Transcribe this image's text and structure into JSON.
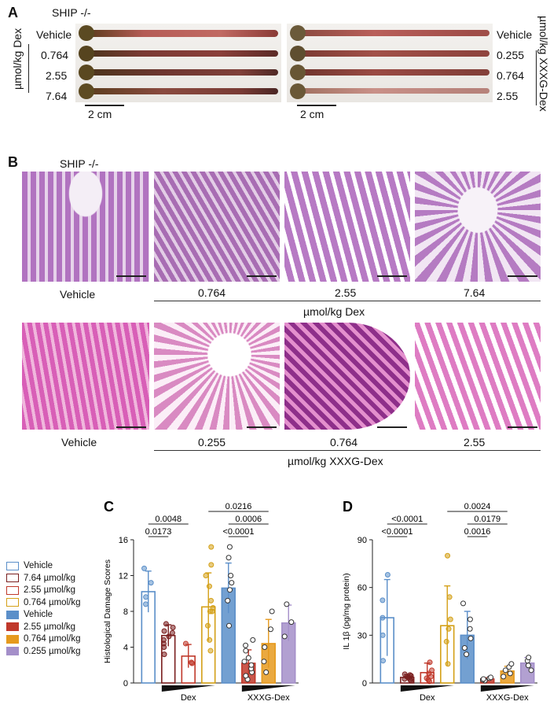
{
  "panel_a": {
    "letter": "A",
    "genotype": "SHIP -/-",
    "left_unit": "µmol/kg Dex",
    "left_rows": [
      "Vehicle",
      "0.764",
      "2.55",
      "7.64"
    ],
    "right_unit": "µmol/kg XXXG-Dex",
    "right_rows": [
      "Vehicle",
      "0.255",
      "0.764",
      "2.55"
    ],
    "scale_left": "2 cm",
    "scale_right": "2 cm"
  },
  "panel_b": {
    "letter": "B",
    "genotype": "SHIP -/-",
    "row1_labels": [
      "Vehicle",
      "0.764",
      "2.55",
      "7.64"
    ],
    "row1_unit": "µmol/kg Dex",
    "row2_labels": [
      "Vehicle",
      "0.255",
      "0.764",
      "2.55"
    ],
    "row2_unit": "µmol/kg XXXG-Dex"
  },
  "legend": {
    "items": [
      {
        "label": "Vehicle",
        "color": "#5b8fc9",
        "fill": false
      },
      {
        "label": "7.64 µmol/kg",
        "color": "#7a1f1f",
        "fill": false
      },
      {
        "label": "2.55 µmol/kg",
        "color": "#c0392b",
        "fill": false
      },
      {
        "label": "0.764 µmol/kg",
        "color": "#d4a017",
        "fill": false
      },
      {
        "label": "Vehicle",
        "color": "#5b8fc9",
        "fill": true
      },
      {
        "label": "2.55 µmol/kg",
        "color": "#c0392b",
        "fill": true
      },
      {
        "label": "0.764 µmol/kg",
        "color": "#e69a1e",
        "fill": true
      },
      {
        "label": "0.255 µmol/kg",
        "color": "#a48fc9",
        "fill": true
      }
    ]
  },
  "chart_data": [
    {
      "panel": "C",
      "type": "bar",
      "ylabel": "Histological Damage Scores",
      "ylim": [
        0,
        16
      ],
      "yticks": [
        0,
        4,
        8,
        12,
        16
      ],
      "group_labels": [
        "Dex",
        "XXXG-Dex"
      ],
      "bars": [
        {
          "name": "Vehicle",
          "mean": 10.2,
          "sd": 2.3,
          "color": "#5b8fc9",
          "fill": false,
          "points": [
            8.8,
            9.6,
            11.2,
            12.8
          ]
        },
        {
          "name": "7.64",
          "mean": 5.3,
          "sd": 1.2,
          "color": "#7a1f1f",
          "fill": false,
          "points": [
            3.2,
            4.0,
            4.4,
            4.8,
            5.2,
            5.6,
            5.8,
            6.2,
            6.6
          ]
        },
        {
          "name": "2.55",
          "mean": 3.0,
          "sd": 1.3,
          "color": "#c0392b",
          "fill": false,
          "points": [
            2.2,
            2.3,
            4.4
          ]
        },
        {
          "name": "0.764",
          "mean": 8.5,
          "sd": 3.8,
          "color": "#d4a017",
          "fill": false,
          "points": [
            3.6,
            4.8,
            6.4,
            8.0,
            8.0,
            8.4,
            9.2,
            10.8,
            12.0,
            13.2,
            15.2
          ]
        },
        {
          "name": "Vehicle",
          "mean": 10.6,
          "sd": 2.8,
          "color": "#5b8fc9",
          "fill": true,
          "points": [
            6.4,
            9.2,
            10.4,
            11.2,
            12.0,
            14.0,
            15.2
          ]
        },
        {
          "name": "2.55",
          "mean": 2.2,
          "sd": 1.5,
          "color": "#c0392b",
          "fill": true,
          "points": [
            0.4,
            0.8,
            1.2,
            1.6,
            2.0,
            2.4,
            2.8,
            3.6,
            4.2,
            4.8
          ]
        },
        {
          "name": "0.764",
          "mean": 4.4,
          "sd": 2.7,
          "color": "#e69a1e",
          "fill": true,
          "points": [
            1.2,
            2.4,
            4.0,
            6.0,
            8.0
          ]
        },
        {
          "name": "0.255",
          "mean": 6.7,
          "sd": 2.0,
          "color": "#a48fc9",
          "fill": true,
          "points": [
            5.2,
            6.8,
            8.8
          ]
        }
      ],
      "brackets": [
        {
          "from": 0,
          "to": 1,
          "label": "0.0173",
          "level": 0
        },
        {
          "from": 0,
          "to": 2,
          "label": "0.0048",
          "level": 1
        },
        {
          "from": 4,
          "to": 5,
          "label": "<0.0001",
          "level": 0
        },
        {
          "from": 4,
          "to": 6,
          "label": "0.0006",
          "level": 1
        },
        {
          "from": 3,
          "to": 6,
          "label": "0.0216",
          "level": 2
        }
      ]
    },
    {
      "panel": "D",
      "type": "bar",
      "ylabel": "IL 1β (pg/mg protein)",
      "ylim": [
        0,
        90
      ],
      "yticks": [
        0,
        30,
        60,
        90
      ],
      "group_labels": [
        "Dex",
        "XXXG-Dex"
      ],
      "bars": [
        {
          "name": "Vehicle",
          "mean": 41,
          "sd": 24,
          "color": "#5b8fc9",
          "fill": false,
          "points": [
            14,
            30,
            41,
            52,
            68
          ]
        },
        {
          "name": "7.64",
          "mean": 3.5,
          "sd": 1.8,
          "color": "#7a1f1f",
          "fill": false,
          "points": [
            1.5,
            2.0,
            2.5,
            3.0,
            3.5,
            4.0,
            4.5,
            5.0,
            5.5
          ]
        },
        {
          "name": "2.55",
          "mean": 6.5,
          "sd": 6.0,
          "color": "#c0392b",
          "fill": false,
          "points": [
            1.0,
            2.0,
            3.0,
            4.0,
            6.0,
            8.0,
            13.0
          ]
        },
        {
          "name": "0.764",
          "mean": 36,
          "sd": 25,
          "color": "#d4a017",
          "fill": false,
          "points": [
            12,
            26,
            34,
            40,
            54,
            80
          ]
        },
        {
          "name": "Vehicle",
          "mean": 30,
          "sd": 15,
          "color": "#5b8fc9",
          "fill": true,
          "points": [
            18,
            22,
            28,
            34,
            40,
            50
          ]
        },
        {
          "name": "2.55",
          "mean": 2.5,
          "sd": 0.8,
          "color": "#c0392b",
          "fill": true,
          "points": [
            1.5,
            2.0,
            2.5,
            3.0,
            3.5
          ]
        },
        {
          "name": "0.764",
          "mean": 7.5,
          "sd": 3.0,
          "color": "#e69a1e",
          "fill": true,
          "points": [
            4.0,
            6.0,
            8.0,
            10.0,
            12.0
          ]
        },
        {
          "name": "0.255",
          "mean": 12.5,
          "sd": 3.5,
          "color": "#a48fc9",
          "fill": true,
          "points": [
            8.0,
            11.0,
            14.0,
            16.0
          ]
        }
      ],
      "brackets": [
        {
          "from": 0,
          "to": 1,
          "label": "<0.0001",
          "level": 0
        },
        {
          "from": 0,
          "to": 2,
          "label": "<0.0001",
          "level": 1
        },
        {
          "from": 4,
          "to": 5,
          "label": "0.0016",
          "level": 0
        },
        {
          "from": 4,
          "to": 6,
          "label": "0.0179",
          "level": 1
        },
        {
          "from": 3,
          "to": 6,
          "label": "0.0024",
          "level": 2
        }
      ]
    }
  ]
}
